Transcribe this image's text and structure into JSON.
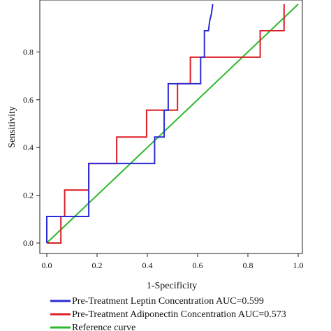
{
  "chart_data": {
    "type": "line",
    "xlabel": "1-Specificity",
    "ylabel": "Sensitivity",
    "xlim": [
      0.0,
      1.0
    ],
    "ylim": [
      0.0,
      1.0
    ],
    "x_ticks": [
      "0.0",
      "0.2",
      "0.4",
      "0.6",
      "0.8",
      "1.0"
    ],
    "y_ticks": [
      "0.0",
      "0.2",
      "0.4",
      "0.6",
      "0.8"
    ],
    "grid": false,
    "legend_position": "bottom",
    "series": [
      {
        "name": "Pre-Treatment Leptin Concentration AUC=0.599",
        "color": "#2b2bd6",
        "points": [
          [
            0.0,
            0.0
          ],
          [
            0.0,
            0.111
          ],
          [
            0.167,
            0.111
          ],
          [
            0.167,
            0.333
          ],
          [
            0.429,
            0.333
          ],
          [
            0.429,
            0.444
          ],
          [
            0.467,
            0.444
          ],
          [
            0.467,
            0.556
          ],
          [
            0.483,
            0.556
          ],
          [
            0.483,
            0.667
          ],
          [
            0.612,
            0.667
          ],
          [
            0.612,
            0.778
          ],
          [
            0.627,
            0.778
          ],
          [
            0.627,
            0.889
          ],
          [
            0.643,
            0.889
          ],
          [
            0.648,
            0.93
          ],
          [
            0.655,
            0.96
          ],
          [
            0.66,
            1.0
          ]
        ]
      },
      {
        "name": "Pre-Treatment Adiponectin Concentration AUC=0.573",
        "color": "#dd1f26",
        "points": [
          [
            0.0,
            0.0
          ],
          [
            0.056,
            0.0
          ],
          [
            0.056,
            0.111
          ],
          [
            0.071,
            0.111
          ],
          [
            0.071,
            0.222
          ],
          [
            0.167,
            0.222
          ],
          [
            0.167,
            0.333
          ],
          [
            0.278,
            0.333
          ],
          [
            0.278,
            0.444
          ],
          [
            0.397,
            0.444
          ],
          [
            0.397,
            0.556
          ],
          [
            0.52,
            0.556
          ],
          [
            0.52,
            0.667
          ],
          [
            0.571,
            0.667
          ],
          [
            0.571,
            0.778
          ],
          [
            0.849,
            0.778
          ],
          [
            0.849,
            0.889
          ],
          [
            0.944,
            0.889
          ],
          [
            0.944,
            1.0
          ]
        ]
      },
      {
        "name": "Reference curve",
        "color": "#2eb82e",
        "points": [
          [
            0.0,
            0.0
          ],
          [
            1.0,
            1.0
          ]
        ]
      }
    ]
  }
}
